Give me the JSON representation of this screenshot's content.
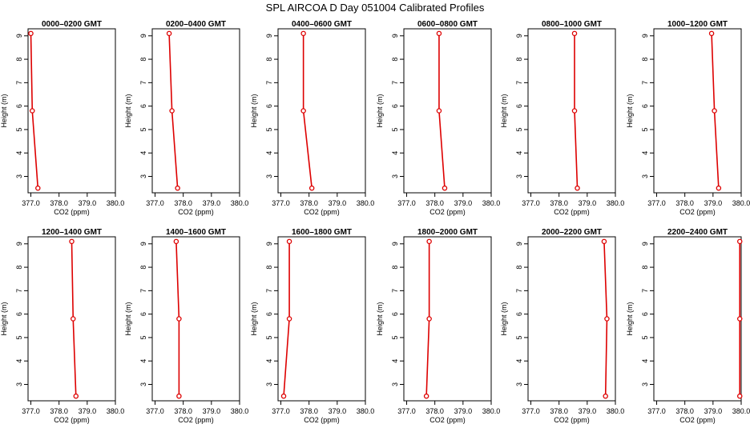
{
  "figure": {
    "title": "SPL AIRCOA D  Day 051004  Calibrated Profiles"
  },
  "colors": {
    "series": "#dd0000",
    "axis": "#000000"
  },
  "chart_data": [
    {
      "type": "line",
      "title": "0000–0200 GMT",
      "xlabel": "CO2 (ppm)",
      "ylabel": "Height (m)",
      "xlim": [
        376.9,
        380.0
      ],
      "ylim": [
        2.3,
        9.3
      ],
      "xticks": [
        "377.0",
        "378.0",
        "379.0",
        "380.0"
      ],
      "yticks": [
        "3",
        "4",
        "5",
        "6",
        "7",
        "8",
        "9"
      ],
      "x": [
        377.0,
        377.05,
        377.25
      ],
      "y": [
        9.1,
        5.8,
        2.5
      ]
    },
    {
      "type": "line",
      "title": "0200–0400 GMT",
      "xlabel": "CO2 (ppm)",
      "ylabel": "Height (m)",
      "xlim": [
        376.9,
        380.0
      ],
      "ylim": [
        2.3,
        9.3
      ],
      "xticks": [
        "377.0",
        "378.0",
        "379.0",
        "380.0"
      ],
      "yticks": [
        "3",
        "4",
        "5",
        "6",
        "7",
        "8",
        "9"
      ],
      "x": [
        377.5,
        377.6,
        377.8
      ],
      "y": [
        9.1,
        5.8,
        2.5
      ]
    },
    {
      "type": "line",
      "title": "0400–0600 GMT",
      "xlabel": "CO2 (ppm)",
      "ylabel": "Height (m)",
      "xlim": [
        376.9,
        380.0
      ],
      "ylim": [
        2.3,
        9.3
      ],
      "xticks": [
        "377.0",
        "378.0",
        "379.0",
        "380.0"
      ],
      "yticks": [
        "3",
        "4",
        "5",
        "6",
        "7",
        "8",
        "9"
      ],
      "x": [
        377.8,
        377.8,
        378.1
      ],
      "y": [
        9.1,
        5.8,
        2.5
      ]
    },
    {
      "type": "line",
      "title": "0600–0800 GMT",
      "xlabel": "CO2 (ppm)",
      "ylabel": "Height (m)",
      "xlim": [
        376.9,
        380.0
      ],
      "ylim": [
        2.3,
        9.3
      ],
      "xticks": [
        "377.0",
        "378.0",
        "379.0",
        "380.0"
      ],
      "yticks": [
        "3",
        "4",
        "5",
        "6",
        "7",
        "8",
        "9"
      ],
      "x": [
        378.15,
        378.15,
        378.35
      ],
      "y": [
        9.1,
        5.8,
        2.5
      ]
    },
    {
      "type": "line",
      "title": "0800–1000 GMT",
      "xlabel": "CO2 (ppm)",
      "ylabel": "Height (m)",
      "xlim": [
        376.9,
        380.0
      ],
      "ylim": [
        2.3,
        9.3
      ],
      "xticks": [
        "377.0",
        "378.0",
        "379.0",
        "380.0"
      ],
      "yticks": [
        "3",
        "4",
        "5",
        "6",
        "7",
        "8",
        "9"
      ],
      "x": [
        378.55,
        378.55,
        378.65
      ],
      "y": [
        9.1,
        5.8,
        2.5
      ]
    },
    {
      "type": "line",
      "title": "1000–1200 GMT",
      "xlabel": "CO2 (ppm)",
      "ylabel": "Height (m)",
      "xlim": [
        376.9,
        380.0
      ],
      "ylim": [
        2.3,
        9.3
      ],
      "xticks": [
        "377.0",
        "378.0",
        "379.0",
        "380.0"
      ],
      "yticks": [
        "3",
        "4",
        "5",
        "6",
        "7",
        "8",
        "9"
      ],
      "x": [
        378.95,
        379.05,
        379.2
      ],
      "y": [
        9.1,
        5.8,
        2.5
      ]
    },
    {
      "type": "line",
      "title": "1200–1400 GMT",
      "xlabel": "CO2 (ppm)",
      "ylabel": "Height (m)",
      "xlim": [
        376.9,
        380.0
      ],
      "ylim": [
        2.3,
        9.3
      ],
      "xticks": [
        "377.0",
        "378.0",
        "379.0",
        "380.0"
      ],
      "yticks": [
        "3",
        "4",
        "5",
        "6",
        "7",
        "8",
        "9"
      ],
      "x": [
        378.45,
        378.5,
        378.6
      ],
      "y": [
        9.1,
        5.8,
        2.5
      ]
    },
    {
      "type": "line",
      "title": "1400–1600 GMT",
      "xlabel": "CO2 (ppm)",
      "ylabel": "Height (m)",
      "xlim": [
        376.9,
        380.0
      ],
      "ylim": [
        2.3,
        9.3
      ],
      "xticks": [
        "377.0",
        "378.0",
        "379.0",
        "380.0"
      ],
      "yticks": [
        "3",
        "4",
        "5",
        "6",
        "7",
        "8",
        "9"
      ],
      "x": [
        377.75,
        377.85,
        377.85
      ],
      "y": [
        9.1,
        5.8,
        2.5
      ]
    },
    {
      "type": "line",
      "title": "1600–1800 GMT",
      "xlabel": "CO2 (ppm)",
      "ylabel": "Height (m)",
      "xlim": [
        376.9,
        380.0
      ],
      "ylim": [
        2.3,
        9.3
      ],
      "xticks": [
        "377.0",
        "378.0",
        "379.0",
        "380.0"
      ],
      "yticks": [
        "3",
        "4",
        "5",
        "6",
        "7",
        "8",
        "9"
      ],
      "x": [
        377.3,
        377.3,
        377.1
      ],
      "y": [
        9.1,
        5.8,
        2.5
      ]
    },
    {
      "type": "line",
      "title": "1800–2000 GMT",
      "xlabel": "CO2 (ppm)",
      "ylabel": "Height (m)",
      "xlim": [
        376.9,
        380.0
      ],
      "ylim": [
        2.3,
        9.3
      ],
      "xticks": [
        "377.0",
        "378.0",
        "379.0",
        "380.0"
      ],
      "yticks": [
        "3",
        "4",
        "5",
        "6",
        "7",
        "8",
        "9"
      ],
      "x": [
        377.8,
        377.8,
        377.7
      ],
      "y": [
        9.1,
        5.8,
        2.5
      ]
    },
    {
      "type": "line",
      "title": "2000–2200 GMT",
      "xlabel": "CO2 (ppm)",
      "ylabel": "Height (m)",
      "xlim": [
        376.9,
        380.0
      ],
      "ylim": [
        2.3,
        9.3
      ],
      "xticks": [
        "377.0",
        "378.0",
        "379.0",
        "380.0"
      ],
      "yticks": [
        "3",
        "4",
        "5",
        "6",
        "7",
        "8",
        "9"
      ],
      "x": [
        379.6,
        379.7,
        379.65
      ],
      "y": [
        9.1,
        5.8,
        2.5
      ]
    },
    {
      "type": "line",
      "title": "2200–2400 GMT",
      "xlabel": "CO2 (ppm)",
      "ylabel": "Height (m)",
      "xlim": [
        376.9,
        380.0
      ],
      "ylim": [
        2.3,
        9.3
      ],
      "xticks": [
        "377.0",
        "378.0",
        "379.0",
        "380.0"
      ],
      "yticks": [
        "3",
        "4",
        "5",
        "6",
        "7",
        "8",
        "9"
      ],
      "x": [
        379.95,
        379.95,
        379.95
      ],
      "y": [
        9.1,
        5.8,
        2.5
      ]
    }
  ]
}
